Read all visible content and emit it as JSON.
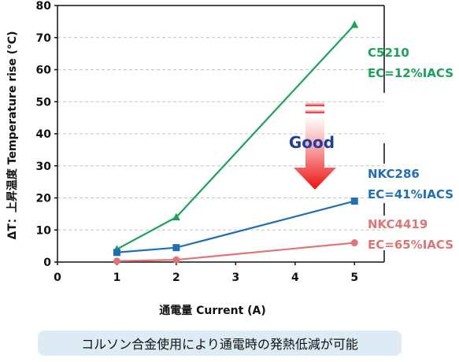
{
  "chart_data": {
    "type": "line",
    "xlabel": "通電量 Current (A)",
    "ylabel": "ΔT：上昇温度 Temperature rise (℃)",
    "xlim": [
      0,
      5.5
    ],
    "ylim": [
      0,
      80
    ],
    "x_ticks": [
      "0",
      "1",
      "2",
      "3",
      "4",
      "5"
    ],
    "y_ticks": [
      "0",
      "10",
      "20",
      "30",
      "40",
      "50",
      "60",
      "70",
      "80"
    ],
    "grid": "horizontal dashed",
    "series": [
      {
        "name": "C5210",
        "sub": "EC=12%IACS",
        "color": "#1aa35a",
        "marker": "triangle",
        "x": [
          1,
          2,
          5
        ],
        "y": [
          4,
          14,
          74
        ]
      },
      {
        "name": "NKC286",
        "sub": "EC=41%IACS",
        "color": "#1e6fb5",
        "marker": "square",
        "x": [
          1,
          2,
          5
        ],
        "y": [
          3,
          4.5,
          19
        ]
      },
      {
        "name": "NKC4419",
        "sub": "EC=65%IACS",
        "color": "#e07575",
        "marker": "circle",
        "x": [
          1,
          2,
          5
        ],
        "y": [
          0.3,
          0.7,
          6
        ]
      }
    ],
    "annotation": "Good"
  },
  "caption": "コルソン合金使用により通電時の発熱低減が可能"
}
